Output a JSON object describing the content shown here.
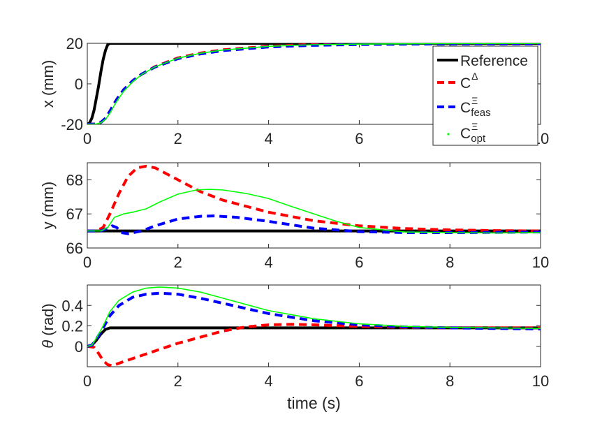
{
  "chart_data": [
    {
      "type": "line",
      "ylabel": "x (mm)",
      "xlim": [
        0,
        10
      ],
      "ylim": [
        -20,
        20
      ],
      "xticks": [
        "0",
        "2",
        "4",
        "6",
        "8",
        "10"
      ],
      "xtick_values": [
        0,
        2,
        4,
        6,
        8,
        10
      ],
      "yticks": [
        "-20",
        "0",
        "20"
      ],
      "ytick_values": [
        -20,
        0,
        20
      ],
      "legend": {
        "placement": "top-right",
        "entries": [
          {
            "label": "Reference",
            "base": "Reference",
            "sup": "",
            "sub": "",
            "series": "ref"
          },
          {
            "label": "C^Δ",
            "base": "C",
            "sup": "Δ",
            "sub": "",
            "series": "delta"
          },
          {
            "label": "C^Ξ_feas",
            "base": "C",
            "sup": "Ξ",
            "sub": "feas",
            "series": "feas"
          },
          {
            "label": "C^Ξ_opt",
            "base": "C",
            "sup": "Ξ",
            "sub": "opt",
            "series": "opt"
          }
        ]
      },
      "series": [
        {
          "name": "Reference",
          "key": "ref",
          "color": "#000000",
          "style": "solid",
          "x": [
            0,
            0.05,
            0.1,
            0.15,
            0.2,
            0.25,
            0.3,
            0.35,
            0.4,
            0.45,
            0.5,
            1,
            2,
            4,
            6,
            8,
            10
          ],
          "y": [
            -20,
            -19.3,
            -17,
            -13,
            -7,
            -1,
            6,
            12,
            16.5,
            19.3,
            20,
            20,
            20,
            20,
            20,
            20,
            20
          ]
        },
        {
          "name": "C^Δ",
          "key": "delta",
          "color": "#ff0000",
          "style": "dash",
          "x": [
            0,
            0.2,
            0.3,
            0.4,
            0.5,
            0.6,
            0.7,
            0.8,
            1.0,
            1.2,
            1.5,
            2,
            2.5,
            3,
            4,
            5,
            6,
            7,
            8,
            9,
            10
          ],
          "y": [
            -20,
            -19.8,
            -19,
            -17,
            -13.5,
            -9.5,
            -6,
            -3,
            1.5,
            4.8,
            8.5,
            12.8,
            15.2,
            16.8,
            18.6,
            19.4,
            19.7,
            19.85,
            19.9,
            19.95,
            20
          ]
        },
        {
          "name": "C^Ξ_feas",
          "key": "feas",
          "color": "#0000ff",
          "style": "dash",
          "x": [
            0,
            0.2,
            0.3,
            0.4,
            0.5,
            0.6,
            0.7,
            0.8,
            1.0,
            1.2,
            1.5,
            2,
            2.5,
            3,
            4,
            5,
            6,
            7,
            8,
            9,
            10
          ],
          "y": [
            -20,
            -19.8,
            -19,
            -17,
            -13.5,
            -9.5,
            -6,
            -3,
            1.5,
            4.8,
            8.3,
            12.4,
            14.8,
            16.4,
            18.2,
            19,
            19.4,
            19.6,
            19.7,
            19.75,
            19.8
          ]
        },
        {
          "name": "C^Ξ_opt",
          "key": "opt",
          "color": "#00ff00",
          "style": "solid",
          "x": [
            0,
            0.2,
            0.3,
            0.4,
            0.5,
            0.6,
            0.7,
            0.8,
            1.0,
            1.2,
            1.5,
            2,
            2.5,
            3,
            4,
            5,
            6,
            7,
            8,
            9,
            10
          ],
          "y": [
            -20,
            -19.8,
            -19.2,
            -17.5,
            -14.5,
            -10.5,
            -7,
            -3.8,
            1,
            4.6,
            8.4,
            12.7,
            15.1,
            16.7,
            18.5,
            19.3,
            19.6,
            19.75,
            19.85,
            19.9,
            19.95
          ]
        }
      ]
    },
    {
      "type": "line",
      "ylabel": "y (mm)",
      "xlim": [
        0,
        10
      ],
      "ylim": [
        66,
        68.5
      ],
      "xticks": [
        "0",
        "2",
        "4",
        "6",
        "8",
        "10"
      ],
      "xtick_values": [
        0,
        2,
        4,
        6,
        8,
        10
      ],
      "yticks": [
        "66",
        "67",
        "68"
      ],
      "ytick_values": [
        66,
        67,
        68
      ],
      "series": [
        {
          "name": "Reference",
          "key": "ref",
          "color": "#000000",
          "style": "solid",
          "x": [
            0,
            10
          ],
          "y": [
            66.5,
            66.5
          ]
        },
        {
          "name": "C^Δ",
          "key": "delta",
          "color": "#ff0000",
          "style": "dash",
          "x": [
            0,
            0.2,
            0.35,
            0.5,
            0.7,
            0.9,
            1.1,
            1.3,
            1.5,
            2,
            2.5,
            3,
            4,
            5,
            6,
            7,
            8,
            9,
            10
          ],
          "y": [
            66.5,
            66.5,
            66.6,
            67.0,
            67.6,
            68.1,
            68.35,
            68.4,
            68.35,
            68.0,
            67.65,
            67.4,
            67.05,
            66.8,
            66.65,
            66.57,
            66.53,
            66.51,
            66.5
          ]
        },
        {
          "name": "C^Ξ_feas",
          "key": "feas",
          "color": "#0000ff",
          "style": "dash",
          "x": [
            0,
            0.3,
            0.45,
            0.55,
            0.65,
            0.75,
            0.9,
            1.2,
            1.5,
            2,
            2.5,
            2.8,
            3.3,
            4,
            5,
            6,
            7,
            8,
            9,
            10
          ],
          "y": [
            66.5,
            66.5,
            66.58,
            66.65,
            66.6,
            66.45,
            66.42,
            66.5,
            66.65,
            66.85,
            66.93,
            66.94,
            66.9,
            66.78,
            66.58,
            66.48,
            66.45,
            66.45,
            66.46,
            66.47
          ]
        },
        {
          "name": "C^Ξ_opt",
          "key": "opt",
          "color": "#00ff00",
          "style": "solid",
          "x": [
            0,
            0.3,
            0.45,
            0.6,
            0.8,
            1.0,
            1.3,
            1.6,
            2,
            2.4,
            2.7,
            3,
            3.5,
            4,
            4.5,
            5,
            5.5,
            6,
            7,
            8,
            9,
            10
          ],
          "y": [
            66.5,
            66.5,
            66.6,
            66.9,
            67.0,
            67.05,
            67.15,
            67.35,
            67.58,
            67.7,
            67.72,
            67.7,
            67.6,
            67.45,
            67.22,
            67.0,
            66.78,
            66.6,
            66.47,
            66.45,
            66.44,
            66.45
          ]
        }
      ]
    },
    {
      "type": "line",
      "ylabel": "θ (rad)",
      "ylabel_var": "θ",
      "ylabel_unit": " (rad)",
      "xlabel": "time (s)",
      "xlim": [
        0,
        10
      ],
      "ylim": [
        -0.2,
        0.6
      ],
      "xticks": [
        "0",
        "2",
        "4",
        "6",
        "8",
        "10"
      ],
      "xtick_values": [
        0,
        2,
        4,
        6,
        8,
        10
      ],
      "yticks": [
        "0",
        "0.2",
        "0.4"
      ],
      "ytick_values": [
        0,
        0.2,
        0.4
      ],
      "series": [
        {
          "name": "Reference",
          "key": "ref",
          "color": "#000000",
          "style": "solid",
          "x": [
            0,
            0.1,
            0.2,
            0.3,
            0.4,
            0.5,
            10
          ],
          "y": [
            0,
            0.01,
            0.06,
            0.12,
            0.165,
            0.18,
            0.18
          ]
        },
        {
          "name": "C^Δ",
          "key": "delta",
          "color": "#ff0000",
          "style": "dash",
          "x": [
            0,
            0.15,
            0.25,
            0.35,
            0.45,
            0.55,
            0.8,
            1.2,
            1.6,
            2,
            2.5,
            3,
            3.5,
            4,
            4.5,
            5,
            6,
            7,
            8,
            10
          ],
          "y": [
            0,
            -0.01,
            -0.07,
            -0.14,
            -0.18,
            -0.19,
            -0.15,
            -0.09,
            -0.03,
            0.03,
            0.09,
            0.15,
            0.19,
            0.21,
            0.215,
            0.21,
            0.195,
            0.185,
            0.18,
            0.18
          ]
        },
        {
          "name": "C^Ξ_feas",
          "key": "feas",
          "color": "#0000ff",
          "style": "dash",
          "x": [
            0,
            0.1,
            0.2,
            0.35,
            0.5,
            0.7,
            1.0,
            1.3,
            1.6,
            2,
            2.5,
            3,
            3.5,
            4,
            5,
            6,
            7,
            8,
            9,
            10
          ],
          "y": [
            0,
            0.01,
            0.07,
            0.18,
            0.3,
            0.4,
            0.48,
            0.51,
            0.52,
            0.51,
            0.47,
            0.42,
            0.37,
            0.32,
            0.25,
            0.21,
            0.19,
            0.18,
            0.175,
            0.17
          ]
        },
        {
          "name": "C^Ξ_opt",
          "key": "opt",
          "color": "#00ff00",
          "style": "solid",
          "x": [
            0,
            0.1,
            0.2,
            0.35,
            0.5,
            0.7,
            1.0,
            1.3,
            1.6,
            2,
            2.5,
            3,
            3.5,
            4,
            5,
            6,
            7,
            8,
            9,
            10
          ],
          "y": [
            0,
            0.01,
            0.08,
            0.2,
            0.34,
            0.45,
            0.53,
            0.57,
            0.58,
            0.57,
            0.53,
            0.47,
            0.41,
            0.35,
            0.27,
            0.22,
            0.195,
            0.185,
            0.18,
            0.175
          ]
        }
      ]
    }
  ]
}
